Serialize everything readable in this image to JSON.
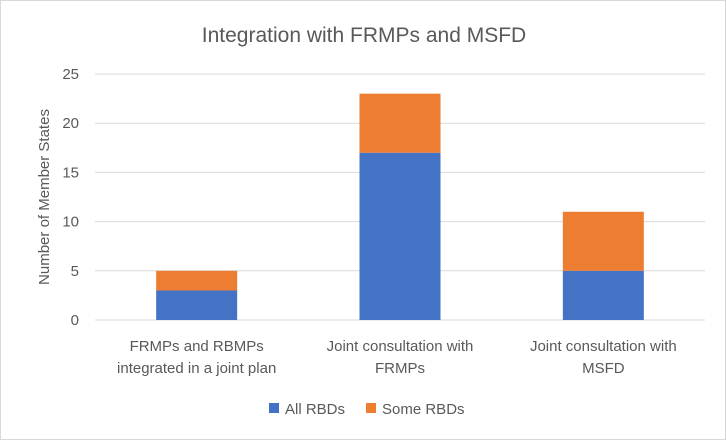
{
  "chart_data": {
    "type": "bar",
    "stacked": true,
    "title": "Integration with FRMPs and MSFD",
    "xlabel": "",
    "ylabel": "Number of Member States",
    "ylim": [
      0,
      25
    ],
    "yticks": [
      0,
      5,
      10,
      15,
      20,
      25
    ],
    "categories": [
      [
        "FRMPs and RBMPs",
        "integrated in a joint plan"
      ],
      [
        "Joint consultation with",
        "FRMPs"
      ],
      [
        "Joint consultation with",
        "MSFD"
      ]
    ],
    "series": [
      {
        "name": "All RBDs",
        "color": "#4472c4",
        "values": [
          3,
          17,
          5
        ]
      },
      {
        "name": "Some RBDs",
        "color": "#ed7d31",
        "values": [
          2,
          6,
          6
        ]
      }
    ],
    "grid": true,
    "legend_position": "bottom"
  }
}
